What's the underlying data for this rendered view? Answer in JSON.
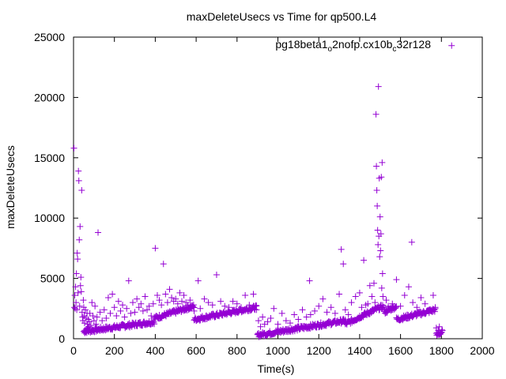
{
  "chart_data": {
    "type": "scatter",
    "title": "maxDeleteUsecs vs Time for qp500.L4",
    "xlabel": "Time(s)",
    "ylabel": "maxDeleteUsecs",
    "xlim": [
      0,
      2000
    ],
    "ylim": [
      0,
      25000
    ],
    "xticks": [
      0,
      200,
      400,
      600,
      800,
      1000,
      1200,
      1400,
      1600,
      1800,
      2000
    ],
    "yticks": [
      0,
      5000,
      10000,
      15000,
      20000,
      25000
    ],
    "xtick_labels": [
      "0",
      "200",
      "400",
      "600",
      "800",
      "1000",
      "1200",
      "1400",
      "1600",
      "1800",
      "2000"
    ],
    "ytick_labels": [
      "0",
      "5000",
      "10000",
      "15000",
      "20000",
      "25000"
    ],
    "grid": false,
    "legend_position": "top-right",
    "marker": "plus",
    "series": [
      {
        "name_parts": [
          "pg18beta1",
          "o",
          "2nofp.cx10b",
          "c",
          "32r128"
        ],
        "color": "#9400d3",
        "points": [
          [
            2,
            15800
          ],
          [
            4,
            2600
          ],
          [
            6,
            3600
          ],
          [
            8,
            2500
          ],
          [
            10,
            4300
          ],
          [
            12,
            3000
          ],
          [
            14,
            5400
          ],
          [
            16,
            2400
          ],
          [
            18,
            7100
          ],
          [
            20,
            6600
          ],
          [
            22,
            3800
          ],
          [
            24,
            13900
          ],
          [
            26,
            13100
          ],
          [
            28,
            8200
          ],
          [
            30,
            2700
          ],
          [
            32,
            9300
          ],
          [
            34,
            4400
          ],
          [
            36,
            5100
          ],
          [
            38,
            3900
          ],
          [
            40,
            12300
          ],
          [
            42,
            2200
          ],
          [
            44,
            1800
          ],
          [
            46,
            1500
          ],
          [
            48,
            3200
          ],
          [
            50,
            2600
          ],
          [
            52,
            1900
          ],
          [
            54,
            1300
          ],
          [
            56,
            700
          ],
          [
            58,
            2400
          ],
          [
            60,
            600
          ],
          [
            62,
            1700
          ],
          [
            64,
            800
          ],
          [
            66,
            2100
          ],
          [
            68,
            1200
          ],
          [
            70,
            900
          ],
          [
            72,
            1600
          ],
          [
            74,
            1000
          ],
          [
            76,
            700
          ],
          [
            78,
            1400
          ],
          [
            80,
            2100
          ],
          [
            85,
            1100
          ],
          [
            90,
            3000
          ],
          [
            95,
            1900
          ],
          [
            100,
            1500
          ],
          [
            105,
            2700
          ],
          [
            110,
            1200
          ],
          [
            115,
            1800
          ],
          [
            120,
            8800
          ],
          [
            130,
            2200
          ],
          [
            140,
            1500
          ],
          [
            150,
            2400
          ],
          [
            160,
            1700
          ],
          [
            170,
            3400
          ],
          [
            180,
            2100
          ],
          [
            190,
            3700
          ],
          [
            200,
            2600
          ],
          [
            210,
            1900
          ],
          [
            220,
            3100
          ],
          [
            230,
            2300
          ],
          [
            240,
            2800
          ],
          [
            250,
            1800
          ],
          [
            260,
            2500
          ],
          [
            270,
            4800
          ],
          [
            280,
            2100
          ],
          [
            290,
            3000
          ],
          [
            300,
            2200
          ],
          [
            310,
            3300
          ],
          [
            320,
            2600
          ],
          [
            330,
            2900
          ],
          [
            340,
            2300
          ],
          [
            350,
            3500
          ],
          [
            360,
            2400
          ],
          [
            370,
            2700
          ],
          [
            380,
            1900
          ],
          [
            390,
            2900
          ],
          [
            400,
            7500
          ],
          [
            410,
            3600
          ],
          [
            420,
            3200
          ],
          [
            430,
            2800
          ],
          [
            440,
            6200
          ],
          [
            450,
            3700
          ],
          [
            460,
            3000
          ],
          [
            470,
            4100
          ],
          [
            480,
            3400
          ],
          [
            490,
            3100
          ],
          [
            500,
            3300
          ],
          [
            510,
            2900
          ],
          [
            520,
            3800
          ],
          [
            530,
            3100
          ],
          [
            540,
            3600
          ],
          [
            550,
            3000
          ],
          [
            560,
            2800
          ],
          [
            570,
            3200
          ],
          [
            580,
            2700
          ],
          [
            590,
            2300
          ],
          [
            610,
            4800
          ],
          [
            620,
            2500
          ],
          [
            640,
            3300
          ],
          [
            660,
            3000
          ],
          [
            680,
            2800
          ],
          [
            700,
            5300
          ],
          [
            720,
            3100
          ],
          [
            740,
            2700
          ],
          [
            760,
            2600
          ],
          [
            780,
            3100
          ],
          [
            800,
            2900
          ],
          [
            820,
            2600
          ],
          [
            840,
            3600
          ],
          [
            860,
            2800
          ],
          [
            880,
            3700
          ],
          [
            895,
            2400
          ],
          [
            905,
            1500
          ],
          [
            915,
            1000
          ],
          [
            925,
            1800
          ],
          [
            935,
            1200
          ],
          [
            950,
            1400
          ],
          [
            965,
            1700
          ],
          [
            980,
            2500
          ],
          [
            1000,
            1200
          ],
          [
            1020,
            2100
          ],
          [
            1040,
            1500
          ],
          [
            1060,
            1300
          ],
          [
            1080,
            2000
          ],
          [
            1100,
            1600
          ],
          [
            1120,
            2400
          ],
          [
            1140,
            1800
          ],
          [
            1155,
            4800
          ],
          [
            1160,
            2000
          ],
          [
            1180,
            2300
          ],
          [
            1200,
            2700
          ],
          [
            1220,
            3300
          ],
          [
            1240,
            2200
          ],
          [
            1260,
            2600
          ],
          [
            1280,
            2100
          ],
          [
            1300,
            3700
          ],
          [
            1310,
            7400
          ],
          [
            1320,
            6200
          ],
          [
            1330,
            2400
          ],
          [
            1345,
            2000
          ],
          [
            1360,
            3000
          ],
          [
            1380,
            3500
          ],
          [
            1400,
            3800
          ],
          [
            1410,
            2600
          ],
          [
            1420,
            6500
          ],
          [
            1430,
            2800
          ],
          [
            1440,
            2900
          ],
          [
            1450,
            4400
          ],
          [
            1460,
            3500
          ],
          [
            1470,
            4600
          ],
          [
            1475,
            3000
          ],
          [
            1480,
            18600
          ],
          [
            1482,
            14300
          ],
          [
            1484,
            12300
          ],
          [
            1486,
            11000
          ],
          [
            1488,
            9000
          ],
          [
            1490,
            7800
          ],
          [
            1492,
            20900
          ],
          [
            1494,
            8500
          ],
          [
            1496,
            13300
          ],
          [
            1498,
            6800
          ],
          [
            1500,
            10100
          ],
          [
            1502,
            7300
          ],
          [
            1504,
            8700
          ],
          [
            1506,
            13400
          ],
          [
            1508,
            4200
          ],
          [
            1510,
            14600
          ],
          [
            1512,
            5400
          ],
          [
            1514,
            3500
          ],
          [
            1520,
            2600
          ],
          [
            1530,
            3200
          ],
          [
            1540,
            2700
          ],
          [
            1560,
            2900
          ],
          [
            1580,
            4900
          ],
          [
            1600,
            2700
          ],
          [
            1620,
            3600
          ],
          [
            1640,
            4300
          ],
          [
            1655,
            8000
          ],
          [
            1660,
            3000
          ],
          [
            1680,
            2600
          ],
          [
            1700,
            3400
          ],
          [
            1720,
            2900
          ],
          [
            1740,
            2400
          ],
          [
            1760,
            3600
          ],
          [
            1770,
            2600
          ],
          [
            1775,
            900
          ],
          [
            1780,
            500
          ],
          [
            1785,
            700
          ],
          [
            1790,
            1000
          ],
          [
            1795,
            400
          ],
          [
            1800,
            500
          ]
        ],
        "segments": [
          {
            "x": [
              50,
              395
            ],
            "y": [
              600,
              1400
            ]
          },
          {
            "x": [
              395,
              590
            ],
            "y": [
              1700,
              2700
            ]
          },
          {
            "x": [
              590,
              895
            ],
            "y": [
              1600,
              2600
            ]
          },
          {
            "x": [
              900,
              1330
            ],
            "y": [
              300,
              1500
            ]
          },
          {
            "x": [
              1330,
              1410
            ],
            "y": [
              1200,
              1900
            ]
          },
          {
            "x": [
              1410,
              1515
            ],
            "y": [
              1900,
              2700
            ]
          },
          {
            "x": [
              1520,
              1580
            ],
            "y": [
              2200,
              2700
            ]
          },
          {
            "x": [
              1580,
              1770
            ],
            "y": [
              1600,
              2400
            ]
          },
          {
            "x": [
              1775,
              1805
            ],
            "y": [
              300,
              600
            ]
          }
        ],
        "legend_point": [
          1850,
          24300
        ]
      }
    ]
  }
}
